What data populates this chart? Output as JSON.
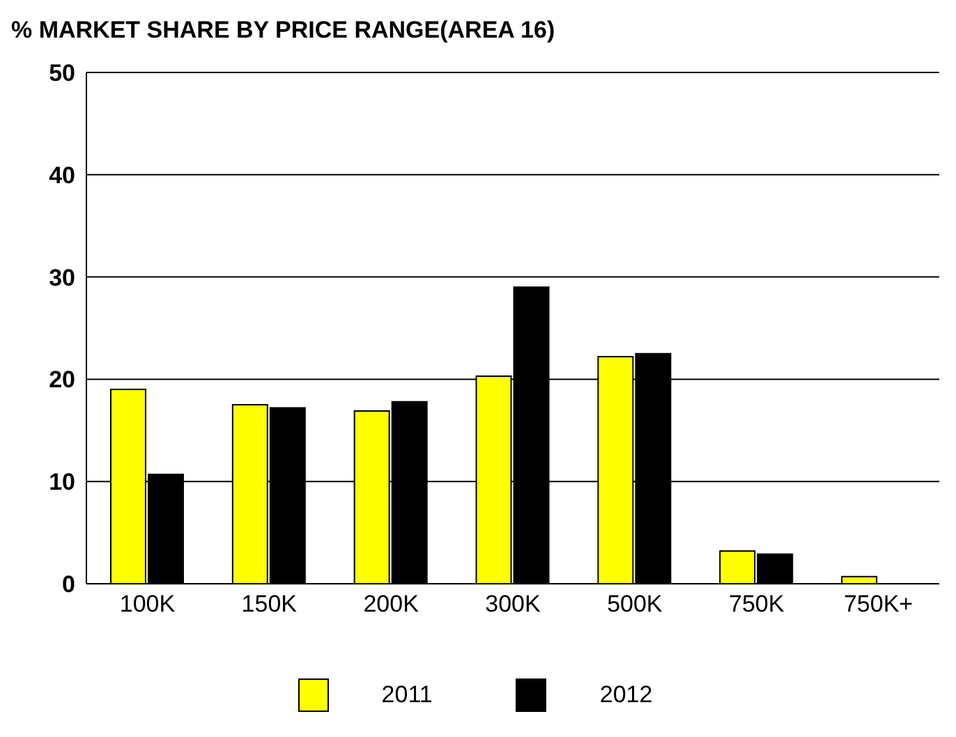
{
  "chart_data": {
    "type": "bar",
    "title": "% MARKET SHARE BY PRICE RANGE(AREA 16)",
    "categories": [
      "100K",
      "150K",
      "200K",
      "300K",
      "500K",
      "750K",
      "750K+"
    ],
    "series": [
      {
        "name": "2011",
        "color": "#ffff00",
        "values": [
          19,
          17.5,
          16.9,
          20.3,
          22.2,
          3.2,
          0.7
        ]
      },
      {
        "name": "2012",
        "color": "#000000",
        "values": [
          10.7,
          17.2,
          17.8,
          29,
          22.5,
          2.9,
          0
        ]
      }
    ],
    "ylim": [
      0,
      50
    ],
    "yticks": [
      0,
      10,
      20,
      30,
      40,
      50
    ],
    "grid": "y",
    "legend": "bottom"
  }
}
